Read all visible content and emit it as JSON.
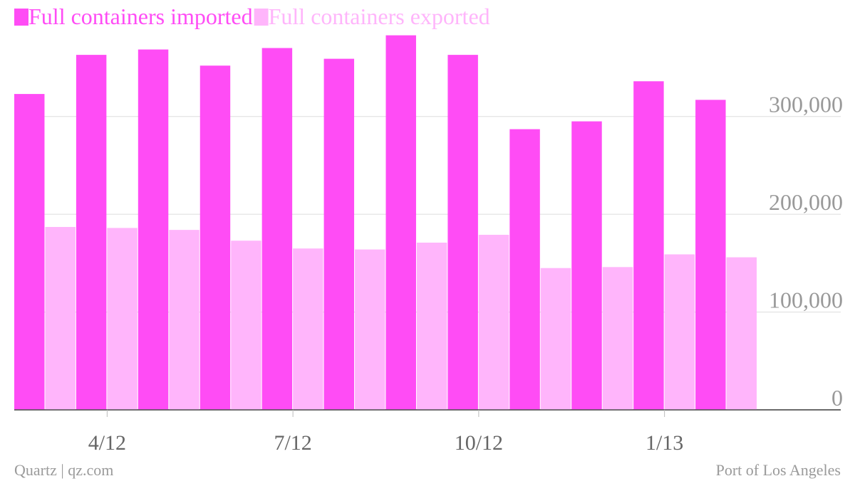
{
  "chart_data": {
    "type": "bar",
    "categories": [
      "3/12",
      "4/12",
      "5/12",
      "6/12",
      "7/12",
      "8/12",
      "9/12",
      "10/12",
      "11/12",
      "12/12",
      "1/13",
      "2/13"
    ],
    "category_labels": [
      null,
      "4/12",
      null,
      null,
      "7/12",
      null,
      null,
      "10/12",
      null,
      null,
      "1/13",
      null
    ],
    "series": [
      {
        "name": "Full containers imported",
        "color": "#ff4cf5",
        "values": [
          323000,
          363000,
          368500,
          352000,
          370000,
          359000,
          383000,
          363000,
          287000,
          295000,
          336000,
          317000
        ]
      },
      {
        "name": "Full containers exported",
        "color": "#ffb5fb",
        "values": [
          187000,
          186000,
          184000,
          173000,
          165000,
          164000,
          171000,
          179000,
          145000,
          146000,
          159000,
          156000
        ]
      }
    ],
    "ylim": [
      0,
      390000
    ],
    "yticks": [
      0,
      {
        "value": 100000,
        "label": "100,000"
      },
      {
        "value": 200000,
        "label": "200,000"
      },
      {
        "value": 300000,
        "label": "300,000"
      }
    ],
    "grid": true,
    "y_axis_side": "right",
    "legend_position": "top-left",
    "credit": "Quartz | qz.com",
    "source": "Port of Los Angeles"
  }
}
